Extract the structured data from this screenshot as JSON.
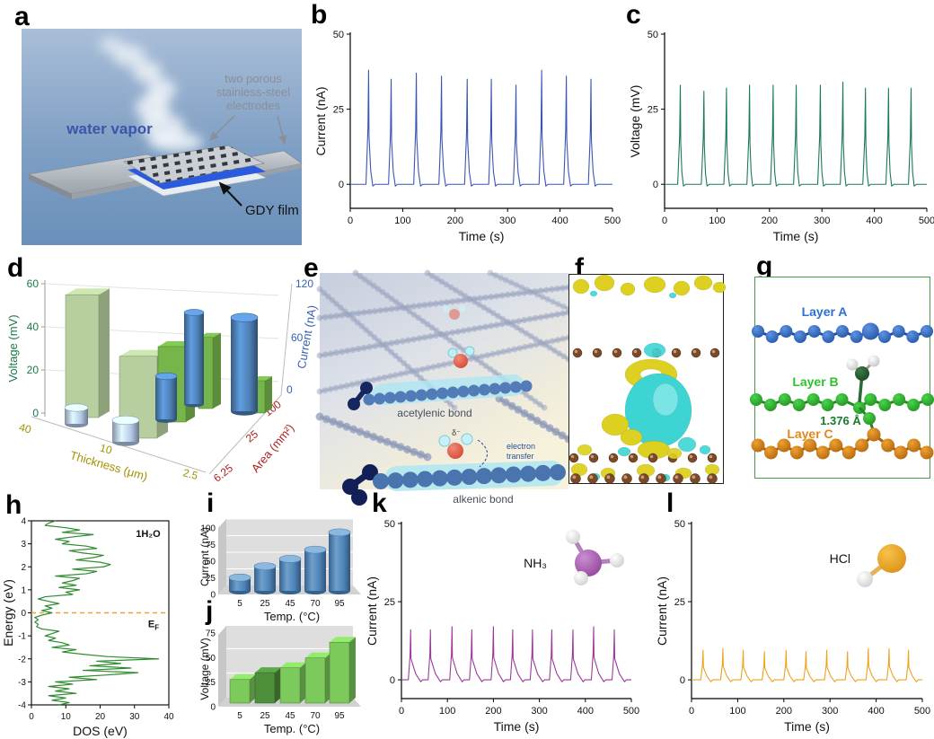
{
  "figure": {
    "panel_labels": {
      "a": "a",
      "b": "b",
      "c": "c",
      "d": "d",
      "e": "e",
      "f": "f",
      "g": "g",
      "h": "h",
      "i": "i",
      "j": "j",
      "k": "k",
      "l": "l"
    }
  },
  "panel_a": {
    "labels": {
      "water_vapor": "water vapor",
      "electrodes_line1": "two porous",
      "electrodes_line2": "stainless-steel",
      "electrodes_line3": "electrodes",
      "gdy_film": "GDY film"
    },
    "colors": {
      "bg_top": "#a9bed8",
      "bg_bottom": "#6a90ba",
      "water_vapor_text": "#3c55a8",
      "electrodes_text": "#8a8f96",
      "gdy_text": "#111111",
      "film": "#2a5ade"
    }
  },
  "panel_e": {
    "labels": {
      "acetylenic": "acetylenic bond",
      "alkenic": "alkenic bond",
      "electron_transfer_line1": "electron",
      "electron_transfer_line2": "transfer",
      "delta": "δ⁻"
    }
  },
  "panel_f": {
    "colors": {
      "accumulation": "#ddd020",
      "depletion": "#3fd4d4",
      "atom": "#7a4a28"
    }
  },
  "panel_g": {
    "labels": {
      "layer_a": "Layer A",
      "layer_b": "Layer B",
      "layer_c": "Layer C",
      "bond_length": "1.376 Å"
    },
    "colors": {
      "layer_a": "#2f6fd2",
      "layer_b": "#2ec22e",
      "layer_c": "#e2871c",
      "bond_text": "#1a7a2a"
    }
  },
  "chart_data": [
    {
      "id": "b",
      "type": "line-spike",
      "xlabel": "Time (s)",
      "ylabel": "Current (nA)",
      "xlim": [
        0,
        500
      ],
      "ylim": [
        -8,
        50
      ],
      "xticks": [
        0,
        100,
        200,
        300,
        400,
        500
      ],
      "yticks": [
        0,
        25,
        50
      ],
      "color": "#3a56b4",
      "decay": 8,
      "spike_times": [
        35,
        78,
        126,
        174,
        223,
        269,
        316,
        365,
        412,
        459
      ],
      "spike_peaks": [
        38,
        35,
        37,
        36,
        35,
        35,
        33,
        38,
        36,
        35
      ]
    },
    {
      "id": "c",
      "type": "line-spike",
      "xlabel": "Time (s)",
      "ylabel": "Voltage (mV)",
      "xlim": [
        0,
        500
      ],
      "ylim": [
        -8,
        50
      ],
      "xticks": [
        0,
        100,
        200,
        300,
        400,
        500
      ],
      "yticks": [
        0,
        25,
        50
      ],
      "color": "#1b7a58",
      "decay": 6,
      "spike_times": [
        30,
        75,
        118,
        162,
        207,
        251,
        297,
        340,
        383,
        427,
        470
      ],
      "spike_peaks": [
        33,
        31,
        32,
        33,
        33,
        33,
        33,
        34,
        32,
        32,
        32
      ]
    },
    {
      "id": "d",
      "type": "bar3d",
      "axes": {
        "left_label": "Voltage (mV)",
        "left_ticks": [
          0,
          20,
          40,
          60
        ],
        "right_label": "Current (nA)",
        "right_ticks": [
          0,
          60,
          120
        ],
        "floor_left_label": "Thickness (μm)",
        "floor_left_ticks": [
          "40",
          "10",
          "2.5"
        ],
        "floor_right_label": "Area (mm²)",
        "floor_right_ticks": [
          "100",
          "25",
          "6.25"
        ]
      },
      "colors": {
        "left_axis_text": "#1b7a4a",
        "right_axis_text": "#3a5fb0",
        "floor_left_text": "#a39200",
        "floor_right_text": "#b02020",
        "voltage_bar_light": "#b7cf9e",
        "voltage_bar": "#76b54a",
        "current_bar_light": "#b4c8e6",
        "current_bar": "#4d7fb5"
      },
      "pairs": [
        {
          "group": "thickness",
          "key": "40",
          "voltage_mV": 57,
          "current_nA": 15
        },
        {
          "group": "thickness",
          "key": "10",
          "voltage_mV": 38,
          "current_nA": 20
        },
        {
          "group": "thickness-area",
          "key": "2.5 / 100",
          "voltage_mV": 35,
          "current_nA": 40
        },
        {
          "group": "area",
          "key": "25",
          "voltage_mV": 33,
          "current_nA": 85
        },
        {
          "group": "area",
          "key": "6.25",
          "voltage_mV": 15,
          "current_nA": 87
        }
      ]
    },
    {
      "id": "h",
      "type": "line",
      "xlabel": "DOS (eV)",
      "ylabel": "Energy (eV)",
      "xlim": [
        0,
        40
      ],
      "ylim": [
        -4,
        4
      ],
      "xticks": [
        0,
        10,
        20,
        30,
        40
      ],
      "yticks": [
        -4,
        -3,
        -2,
        -1,
        0,
        1,
        2,
        3,
        4
      ],
      "color": "#2e8b2e",
      "annotation": "1H₂O",
      "fermi": {
        "energy": 0,
        "label_main": "E",
        "label_sub": "F",
        "color": "#f0a030"
      },
      "points": [
        [
          4.0,
          7
        ],
        [
          3.9,
          5
        ],
        [
          3.8,
          4
        ],
        [
          3.7,
          10
        ],
        [
          3.6,
          14
        ],
        [
          3.5,
          9
        ],
        [
          3.4,
          18
        ],
        [
          3.3,
          12
        ],
        [
          3.2,
          7
        ],
        [
          3.1,
          11
        ],
        [
          3.0,
          9
        ],
        [
          2.9,
          16
        ],
        [
          2.8,
          19
        ],
        [
          2.7,
          11
        ],
        [
          2.6,
          15
        ],
        [
          2.5,
          21
        ],
        [
          2.4,
          18
        ],
        [
          2.3,
          13
        ],
        [
          2.2,
          20
        ],
        [
          2.1,
          23
        ],
        [
          2.0,
          21
        ],
        [
          1.9,
          12
        ],
        [
          1.8,
          19
        ],
        [
          1.7,
          16
        ],
        [
          1.6,
          7
        ],
        [
          1.5,
          14
        ],
        [
          1.4,
          12
        ],
        [
          1.3,
          9
        ],
        [
          1.2,
          13
        ],
        [
          1.1,
          8
        ],
        [
          1.0,
          14
        ],
        [
          0.9,
          10
        ],
        [
          0.8,
          12
        ],
        [
          0.7,
          4
        ],
        [
          0.6,
          2
        ],
        [
          0.5,
          5
        ],
        [
          0.4,
          8
        ],
        [
          0.3,
          4
        ],
        [
          0.2,
          6
        ],
        [
          0.1,
          3
        ],
        [
          0.0,
          6
        ],
        [
          -0.1,
          3
        ],
        [
          -0.2,
          1
        ],
        [
          -0.3,
          2
        ],
        [
          -0.4,
          1
        ],
        [
          -0.5,
          2
        ],
        [
          -0.6,
          1.5
        ],
        [
          -0.7,
          3
        ],
        [
          -0.8,
          8
        ],
        [
          -0.9,
          6
        ],
        [
          -1.0,
          4
        ],
        [
          -1.1,
          7
        ],
        [
          -1.2,
          5
        ],
        [
          -1.3,
          9
        ],
        [
          -1.4,
          11
        ],
        [
          -1.5,
          6
        ],
        [
          -1.6,
          13
        ],
        [
          -1.7,
          9
        ],
        [
          -1.8,
          15
        ],
        [
          -1.9,
          22
        ],
        [
          -2.0,
          37
        ],
        [
          -2.1,
          19
        ],
        [
          -2.2,
          26
        ],
        [
          -2.3,
          17
        ],
        [
          -2.4,
          29
        ],
        [
          -2.5,
          15
        ],
        [
          -2.6,
          31
        ],
        [
          -2.7,
          22
        ],
        [
          -2.8,
          11
        ],
        [
          -2.9,
          19
        ],
        [
          -3.0,
          7
        ],
        [
          -3.1,
          12
        ],
        [
          -3.2,
          5
        ],
        [
          -3.3,
          11
        ],
        [
          -3.4,
          7
        ],
        [
          -3.5,
          13
        ],
        [
          -3.6,
          5
        ],
        [
          -3.7,
          10
        ],
        [
          -3.8,
          6
        ],
        [
          -3.9,
          11
        ],
        [
          -4.0,
          8
        ]
      ]
    },
    {
      "id": "i",
      "type": "bar",
      "xlabel": "Temp. (°C)",
      "ylabel": "Current (nA)",
      "categories": [
        "5",
        "25",
        "45",
        "70",
        "95"
      ],
      "values": [
        20,
        37,
        48,
        62,
        88
      ],
      "yticks": [
        0,
        25,
        50,
        75,
        100
      ],
      "ylim": [
        0,
        100
      ],
      "color": "#4d84b8"
    },
    {
      "id": "j",
      "type": "bar",
      "xlabel": "Temp. (°C)",
      "ylabel": "Voltage (mV)",
      "categories": [
        "5",
        "25",
        "45",
        "70",
        "95"
      ],
      "values": [
        24,
        31,
        36,
        46,
        62
      ],
      "yticks": [
        0,
        25,
        50,
        75
      ],
      "ylim": [
        0,
        75
      ],
      "bar_colors": [
        "#7cc95c",
        "#4e8f3c",
        "#7cc95c",
        "#7cc95c",
        "#7cc95c"
      ]
    },
    {
      "id": "k",
      "type": "line-spike",
      "xlabel": "Time (s)",
      "ylabel": "Current (nA)",
      "xlim": [
        0,
        500
      ],
      "ylim": [
        -6,
        50
      ],
      "xticks": [
        0,
        100,
        200,
        300,
        400,
        500
      ],
      "yticks": [
        0,
        25,
        50
      ],
      "color": "#9b3a9b",
      "decay": 22,
      "molecule": {
        "label": "NH₃"
      },
      "spike_times": [
        20,
        63,
        110,
        153,
        200,
        242,
        285,
        327,
        373,
        418,
        463
      ],
      "spike_peaks": [
        16,
        16,
        17,
        16,
        17,
        16,
        16,
        16,
        16,
        17,
        16
      ]
    },
    {
      "id": "l",
      "type": "line-spike",
      "xlabel": "Time (s)",
      "ylabel": "Current (nA)",
      "xlim": [
        0,
        500
      ],
      "ylim": [
        -6,
        50
      ],
      "xticks": [
        0,
        100,
        200,
        300,
        400,
        500
      ],
      "yticks": [
        0,
        25,
        50
      ],
      "color": "#efa020",
      "decay": 17,
      "molecule": {
        "label": "HCl"
      },
      "spike_times": [
        25,
        68,
        112,
        158,
        205,
        248,
        293,
        338,
        383,
        428,
        470
      ],
      "spike_peaks": [
        9.5,
        10,
        9.5,
        9,
        9.5,
        9,
        9.5,
        9,
        10,
        10,
        9.5
      ]
    }
  ]
}
